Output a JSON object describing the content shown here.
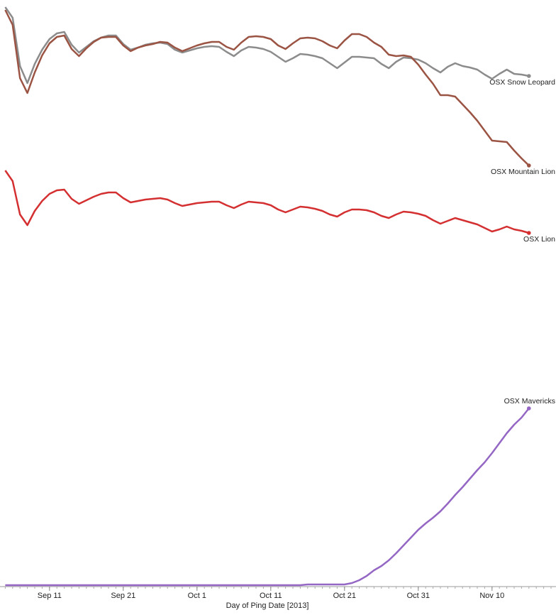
{
  "chart_data": {
    "type": "line",
    "x_label": "Day of Ping Date [2013]",
    "x": [
      "2013-09-05",
      "2013-09-06",
      "2013-09-07",
      "2013-09-08",
      "2013-09-09",
      "2013-09-10",
      "2013-09-11",
      "2013-09-12",
      "2013-09-13",
      "2013-09-14",
      "2013-09-15",
      "2013-09-16",
      "2013-09-17",
      "2013-09-18",
      "2013-09-19",
      "2013-09-20",
      "2013-09-21",
      "2013-09-22",
      "2013-09-23",
      "2013-09-24",
      "2013-09-25",
      "2013-09-26",
      "2013-09-27",
      "2013-09-28",
      "2013-09-29",
      "2013-09-30",
      "2013-10-01",
      "2013-10-02",
      "2013-10-03",
      "2013-10-04",
      "2013-10-05",
      "2013-10-06",
      "2013-10-07",
      "2013-10-08",
      "2013-10-09",
      "2013-10-10",
      "2013-10-11",
      "2013-10-12",
      "2013-10-13",
      "2013-10-14",
      "2013-10-15",
      "2013-10-16",
      "2013-10-17",
      "2013-10-18",
      "2013-10-19",
      "2013-10-20",
      "2013-10-21",
      "2013-10-22",
      "2013-10-23",
      "2013-10-24",
      "2013-10-25",
      "2013-10-26",
      "2013-10-27",
      "2013-10-28",
      "2013-10-29",
      "2013-10-30",
      "2013-10-31",
      "2013-11-01",
      "2013-11-02",
      "2013-11-03",
      "2013-11-04",
      "2013-11-05",
      "2013-11-06",
      "2013-11-07",
      "2013-11-08",
      "2013-11-09",
      "2013-11-10",
      "2013-11-11",
      "2013-11-12",
      "2013-11-13",
      "2013-11-14",
      "2013-11-15"
    ],
    "xlim": [
      "2013-09-04",
      "2013-11-18"
    ],
    "xticks": [
      {
        "value": "2013-09-11",
        "label": "Sep 11"
      },
      {
        "value": "2013-09-21",
        "label": "Sep 21"
      },
      {
        "value": "2013-10-01",
        "label": "Oct 1"
      },
      {
        "value": "2013-10-11",
        "label": "Oct 11"
      },
      {
        "value": "2013-10-21",
        "label": "Oct 21"
      },
      {
        "value": "2013-10-31",
        "label": "Oct 31"
      },
      {
        "value": "2013-11-10",
        "label": "Nov 10"
      }
    ],
    "ylim": [
      0,
      820
    ],
    "series": [
      {
        "name": "OSX Snow Leopard",
        "color": "#8c8c8c",
        "values": [
          816,
          801,
          733,
          709,
          736,
          756,
          771,
          779,
          781,
          763,
          752,
          760,
          768,
          773,
          776,
          776,
          764,
          756,
          759,
          763,
          765,
          766,
          764,
          756,
          752,
          755,
          758,
          760,
          761,
          760,
          753,
          747,
          755,
          760,
          759,
          757,
          753,
          746,
          739,
          744,
          750,
          749,
          747,
          744,
          737,
          730,
          738,
          746,
          746,
          745,
          744,
          736,
          730,
          739,
          745,
          744,
          742,
          737,
          730,
          724,
          732,
          737,
          733,
          731,
          728,
          721,
          715,
          722,
          728,
          722,
          721,
          719
        ]
      },
      {
        "name": "OSX Mountain Lion",
        "color": "#9b5443",
        "values": [
          812,
          791,
          716,
          695,
          724,
          748,
          765,
          774,
          776,
          757,
          747,
          758,
          767,
          773,
          774,
          774,
          762,
          754,
          759,
          762,
          764,
          767,
          766,
          759,
          754,
          758,
          762,
          765,
          767,
          767,
          760,
          756,
          766,
          774,
          775,
          774,
          771,
          762,
          757,
          765,
          772,
          773,
          772,
          768,
          762,
          758,
          769,
          778,
          778,
          774,
          766,
          760,
          749,
          747,
          748,
          746,
          735,
          721,
          708,
          692,
          692,
          690,
          679,
          668,
          656,
          642,
          628,
          627,
          626,
          614,
          603,
          593
        ]
      },
      {
        "name": "OSX Lion",
        "color": "#d43031",
        "values": [
          586,
          571,
          524,
          509,
          529,
          543,
          553,
          558,
          559,
          546,
          539,
          544,
          549,
          553,
          555,
          555,
          547,
          541,
          543,
          545,
          546,
          547,
          545,
          540,
          536,
          538,
          540,
          541,
          542,
          542,
          537,
          533,
          538,
          542,
          541,
          540,
          537,
          531,
          527,
          531,
          535,
          534,
          532,
          529,
          524,
          521,
          527,
          531,
          531,
          530,
          527,
          522,
          519,
          524,
          528,
          527,
          525,
          522,
          516,
          511,
          515,
          519,
          516,
          513,
          510,
          505,
          500,
          503,
          507,
          503,
          501,
          498
        ]
      },
      {
        "name": "OSX Mavericks",
        "color": "#9467c4",
        "values": [
          2,
          2,
          2,
          2,
          2,
          2,
          2,
          2,
          2,
          2,
          2,
          2,
          2,
          2,
          2,
          2,
          2,
          2,
          2,
          2,
          2,
          2,
          2,
          2,
          2,
          2,
          2,
          2,
          2,
          2,
          2,
          2,
          2,
          2,
          2,
          2,
          2,
          2,
          2,
          2,
          2,
          3,
          3,
          3,
          3,
          3,
          3,
          5,
          9,
          15,
          23,
          29,
          37,
          47,
          58,
          69,
          80,
          89,
          97,
          106,
          117,
          129,
          140,
          152,
          164,
          175,
          188,
          202,
          216,
          228,
          238,
          251
        ]
      }
    ]
  }
}
